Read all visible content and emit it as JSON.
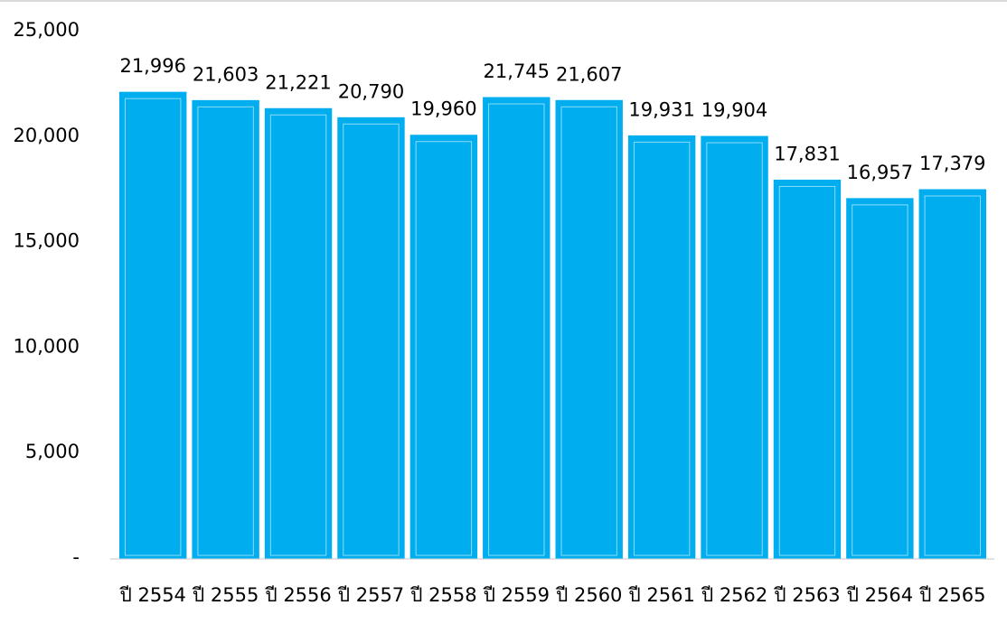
{
  "chart_data": {
    "type": "bar",
    "categories": [
      "ปี 2554",
      "ปี 2555",
      "ปี 2556",
      "ปี 2557",
      "ปี 2558",
      "ปี 2559",
      "ปี 2560",
      "ปี 2561",
      "ปี 2562",
      "ปี 2563",
      "ปี 2564",
      "ปี 2565"
    ],
    "values": [
      21996,
      21603,
      21221,
      20790,
      19960,
      21745,
      21607,
      19931,
      19904,
      17831,
      16957,
      17379
    ],
    "data_labels": [
      "21,996",
      "21,603",
      "21,221",
      "20,790",
      "19,960",
      "21,745",
      "21,607",
      "19,931",
      "19,904",
      "17,831",
      "16,957",
      "17,379"
    ],
    "yticks": [
      0,
      5000,
      10000,
      15000,
      20000,
      25000
    ],
    "ytick_labels": [
      "-",
      "5,000",
      "10,000",
      "15,000",
      "20,000",
      "25,000"
    ],
    "ylim": [
      0,
      25000
    ],
    "grid": false,
    "legend": "none",
    "colors": {
      "bar": "#00AEEF",
      "bar_edge": "#ffffff",
      "axis": "#d9d9d9"
    }
  }
}
